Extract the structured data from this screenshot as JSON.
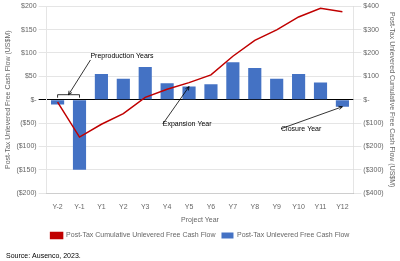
{
  "chart_data": {
    "type": "bar",
    "categories": [
      "Y-2",
      "Y-1",
      "Y1",
      "Y2",
      "Y3",
      "Y4",
      "Y5",
      "Y6",
      "Y7",
      "Y8",
      "Y9",
      "Y10",
      "Y11",
      "Y12"
    ],
    "series": [
      {
        "name": "Post-Tax Unlevered Free Cash Flow",
        "type": "bar",
        "color": "#4472C4",
        "values": [
          -10,
          -150,
          55,
          45,
          70,
          35,
          28,
          33,
          80,
          68,
          45,
          55,
          37,
          -15
        ]
      },
      {
        "name": "Post-Tax Cumulative Unlevered Free Cash Flow",
        "type": "line",
        "axis": "y2",
        "color": "#C00000",
        "values": [
          -10,
          -160,
          -105,
          -60,
          10,
          45,
          73,
          106,
          186,
          254,
          299,
          354,
          391,
          376
        ]
      }
    ],
    "xlabel": "Project Year",
    "ylabel": "Post-Tax Unlevered Free Cash Flow (US$M)",
    "y2label": "Post-Tax Unlevered Cumulative Free Cash Flow (US$M)",
    "ylim": [
      -200,
      200
    ],
    "yticks": [
      {
        "value": -200,
        "label": "($200)"
      },
      {
        "value": -150,
        "label": "($150)"
      },
      {
        "value": -100,
        "label": "($100)"
      },
      {
        "value": -50,
        "label": "($50)"
      },
      {
        "value": 0,
        "label": "$-"
      },
      {
        "value": 50,
        "label": "$50"
      },
      {
        "value": 100,
        "label": "$100"
      },
      {
        "value": 150,
        "label": "$150"
      },
      {
        "value": 200,
        "label": "$200"
      }
    ],
    "y2lim": [
      -400,
      400
    ],
    "y2ticks": [
      {
        "value": -400,
        "label": "($400)"
      },
      {
        "value": -300,
        "label": "($300)"
      },
      {
        "value": -200,
        "label": "($200)"
      },
      {
        "value": -100,
        "label": "($100)"
      },
      {
        "value": 0,
        "label": "$-"
      },
      {
        "value": 100,
        "label": "$100"
      },
      {
        "value": 200,
        "label": "$200"
      },
      {
        "value": 300,
        "label": "$300"
      },
      {
        "value": 400,
        "label": "$400"
      }
    ],
    "grid": true,
    "legend": "bottom",
    "annotations": [
      {
        "text": "Preproduction Years",
        "x": [
          "Y-2",
          "Y-1"
        ]
      },
      {
        "text": "Expansion Year",
        "x": "Y5"
      },
      {
        "text": "Closure Year",
        "x": "Y12"
      }
    ],
    "source": "Source: Ausenco, 2023."
  }
}
